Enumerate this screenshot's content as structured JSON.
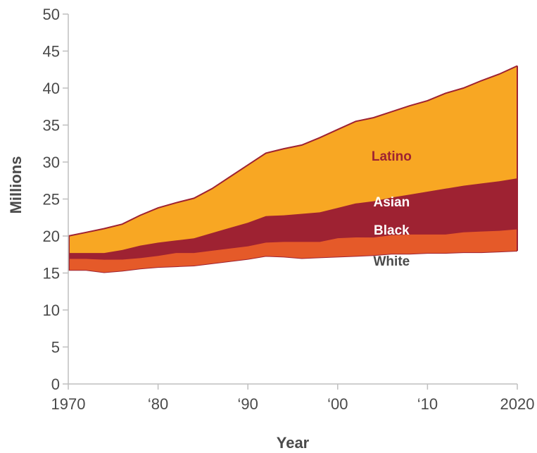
{
  "chart_data": {
    "type": "area",
    "stacked": true,
    "xlabel": "Year",
    "ylabel": "Millions",
    "xlim": [
      1970,
      2020
    ],
    "ylim": [
      0,
      50
    ],
    "x_ticks": [
      {
        "value": 1970,
        "label": "1970"
      },
      {
        "value": 1980,
        "label": "‘80"
      },
      {
        "value": 1990,
        "label": "‘90"
      },
      {
        "value": 2000,
        "label": "‘00"
      },
      {
        "value": 2010,
        "label": "‘10"
      },
      {
        "value": 2020,
        "label": "2020"
      }
    ],
    "y_ticks": [
      {
        "value": 0,
        "label": "0"
      },
      {
        "value": 5,
        "label": "5"
      },
      {
        "value": 10,
        "label": "10"
      },
      {
        "value": 15,
        "label": "15"
      },
      {
        "value": 20,
        "label": "20"
      },
      {
        "value": 25,
        "label": "25"
      },
      {
        "value": 30,
        "label": "30"
      },
      {
        "value": 35,
        "label": "35"
      },
      {
        "value": 40,
        "label": "40"
      },
      {
        "value": 45,
        "label": "45"
      },
      {
        "value": 50,
        "label": "50"
      }
    ],
    "x": [
      1970,
      1972,
      1974,
      1976,
      1978,
      1980,
      1982,
      1984,
      1986,
      1988,
      1990,
      1992,
      1994,
      1996,
      1998,
      2000,
      2002,
      2004,
      2006,
      2008,
      2010,
      2012,
      2014,
      2016,
      2018,
      2020
    ],
    "series": [
      {
        "name": "White",
        "color": "#ffffff",
        "values": [
          15.4,
          15.4,
          15.1,
          15.3,
          15.6,
          15.8,
          15.9,
          16.0,
          16.3,
          16.6,
          16.9,
          17.3,
          17.2,
          17.0,
          17.1,
          17.2,
          17.3,
          17.4,
          17.6,
          17.6,
          17.7,
          17.7,
          17.8,
          17.8,
          17.9,
          18.0
        ]
      },
      {
        "name": "Black",
        "color": "#e55a29",
        "values": [
          1.6,
          1.6,
          1.8,
          1.6,
          1.5,
          1.6,
          1.9,
          1.8,
          1.8,
          1.8,
          1.8,
          1.9,
          2.1,
          2.3,
          2.2,
          2.6,
          2.6,
          2.5,
          2.6,
          2.7,
          2.6,
          2.6,
          2.8,
          2.9,
          2.9,
          3.0
        ]
      },
      {
        "name": "Asian",
        "color": "#9e2232",
        "values": [
          0.7,
          0.7,
          0.8,
          1.2,
          1.6,
          1.7,
          1.6,
          1.9,
          2.3,
          2.7,
          3.1,
          3.5,
          3.5,
          3.7,
          3.9,
          4.0,
          4.5,
          4.8,
          5.0,
          5.3,
          5.7,
          6.1,
          6.2,
          6.4,
          6.6,
          6.8
        ]
      },
      {
        "name": "Latino",
        "color": "#f8a723",
        "values": [
          2.3,
          2.8,
          3.3,
          3.5,
          4.1,
          4.7,
          5.1,
          5.4,
          6.0,
          6.9,
          7.8,
          8.5,
          9.0,
          9.3,
          10.1,
          10.6,
          11.1,
          11.3,
          11.6,
          12.0,
          12.3,
          12.9,
          13.2,
          13.9,
          14.5,
          15.2
        ]
      }
    ],
    "grid": false,
    "series_labels": [
      {
        "name": "Latino",
        "text": "Latino",
        "color": "#9e2232",
        "x": 2006,
        "y": 30.2
      },
      {
        "name": "Asian",
        "text": "Asian",
        "color": "#ffffff",
        "x": 2006,
        "y": 24.0
      },
      {
        "name": "Black",
        "text": "Black",
        "color": "#ffffff",
        "x": 2006,
        "y": 20.2
      },
      {
        "name": "White",
        "text": "White",
        "color": "#4a4a4a",
        "x": 2006,
        "y": 16.0
      }
    ],
    "colors": {
      "axis": "#bfbfbf",
      "text": "#4a4a4a",
      "outline": "#9e2232"
    }
  }
}
